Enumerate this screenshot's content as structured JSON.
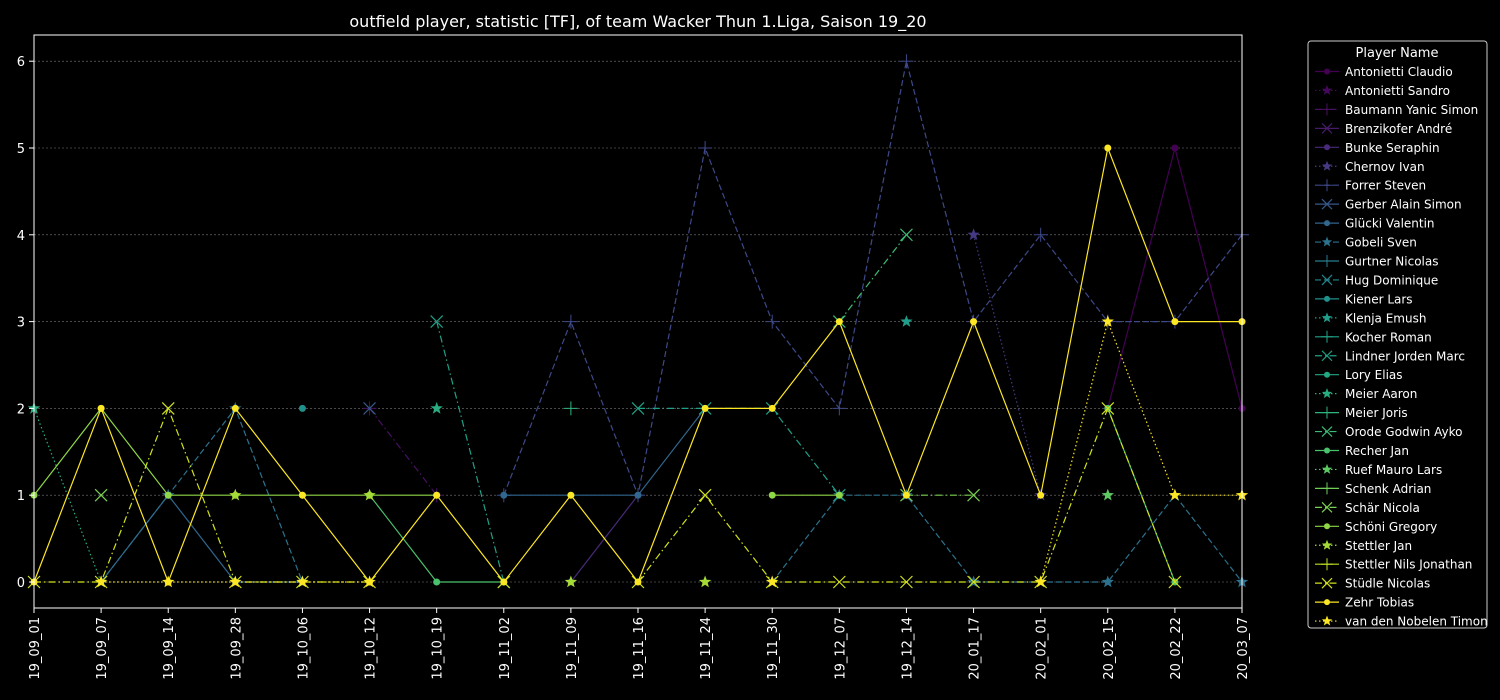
{
  "chart_data": {
    "type": "line",
    "title": "outfield player, statistic [TF], of team Wacker Thun 1.Liga, Saison 19_20",
    "xlabel": "",
    "ylabel": "",
    "x": [
      "19_09_01",
      "19_09_07",
      "19_09_14",
      "19_09_28",
      "19_10_06",
      "19_10_12",
      "19_10_19",
      "19_11_02",
      "19_11_09",
      "19_11_16",
      "19_11_24",
      "19_11_30",
      "19_12_07",
      "19_12_14",
      "20_01_17",
      "20_02_01",
      "20_02_15",
      "20_02_22",
      "20_03_07"
    ],
    "yticks": [
      0,
      1,
      2,
      3,
      4,
      5,
      6
    ],
    "ylim": [
      -0.3,
      6.3
    ],
    "grid": true,
    "legend_title": "Player Name",
    "legend_position": "outside-right",
    "series": [
      {
        "name": "Antonietti Claudio",
        "color": "#440154",
        "marker": "o",
        "dash": "solid",
        "values": [
          null,
          null,
          null,
          null,
          null,
          null,
          null,
          null,
          null,
          null,
          null,
          null,
          null,
          null,
          null,
          null,
          2,
          5,
          2
        ]
      },
      {
        "name": "Antonietti Sandro",
        "color": "#46085c",
        "marker": "*",
        "dash": "dotted",
        "values": [
          null,
          null,
          null,
          null,
          null,
          null,
          null,
          null,
          null,
          null,
          null,
          null,
          null,
          null,
          null,
          null,
          null,
          null,
          null
        ]
      },
      {
        "name": "Baumann Yanic Simon",
        "color": "#471063",
        "marker": "+",
        "dash": "dashdot",
        "values": [
          null,
          null,
          null,
          null,
          null,
          2,
          1,
          null,
          null,
          null,
          null,
          null,
          null,
          null,
          null,
          null,
          null,
          null,
          null
        ]
      },
      {
        "name": "Brenzikofer André",
        "color": "#481a6c",
        "marker": "x",
        "dash": "solid",
        "values": [
          null,
          null,
          null,
          null,
          null,
          null,
          null,
          null,
          null,
          null,
          null,
          null,
          null,
          null,
          null,
          null,
          null,
          null,
          null
        ]
      },
      {
        "name": "Bunke Seraphin",
        "color": "#472a7a",
        "marker": "o",
        "dash": "solid",
        "values": [
          null,
          null,
          null,
          null,
          null,
          null,
          null,
          null,
          0,
          1,
          null,
          null,
          null,
          null,
          null,
          null,
          null,
          null,
          null
        ]
      },
      {
        "name": "Chernov Ivan",
        "color": "#443a83",
        "marker": "*",
        "dash": "dotted",
        "values": [
          null,
          null,
          null,
          null,
          null,
          null,
          null,
          null,
          null,
          null,
          null,
          null,
          null,
          null,
          4,
          1,
          null,
          null,
          null
        ]
      },
      {
        "name": "Forrer Steven",
        "color": "#3e4989",
        "marker": "+",
        "dash": "dashed",
        "values": [
          null,
          null,
          null,
          null,
          null,
          null,
          null,
          1,
          3,
          1,
          5,
          3,
          2,
          6,
          3,
          4,
          3,
          3,
          4
        ]
      },
      {
        "name": "Gerber Alain Simon",
        "color": "#38588c",
        "marker": "x",
        "dash": "solid",
        "values": [
          null,
          null,
          null,
          null,
          null,
          2,
          null,
          null,
          null,
          null,
          null,
          null,
          null,
          null,
          null,
          null,
          null,
          null,
          null
        ]
      },
      {
        "name": "Glücki Valentin",
        "color": "#31668e",
        "marker": "o",
        "dash": "solid",
        "values": [
          null,
          0,
          1,
          0,
          0,
          null,
          null,
          1,
          1,
          1,
          2,
          null,
          null,
          null,
          null,
          null,
          null,
          null,
          null
        ]
      },
      {
        "name": "Gobeli Sven",
        "color": "#2c728e",
        "marker": "*",
        "dash": "dashed",
        "values": [
          null,
          0,
          1,
          2,
          0,
          null,
          null,
          null,
          null,
          null,
          null,
          0,
          1,
          1,
          0,
          0,
          0,
          1,
          0
        ]
      },
      {
        "name": "Gurtner Nicolas",
        "color": "#287d8e",
        "marker": "+",
        "dash": "solid",
        "values": [
          null,
          null,
          null,
          null,
          null,
          null,
          null,
          null,
          null,
          null,
          null,
          null,
          null,
          null,
          null,
          null,
          null,
          null,
          null
        ]
      },
      {
        "name": "Hug Dominique",
        "color": "#24868e",
        "marker": "x",
        "dash": "dashed",
        "values": [
          null,
          null,
          null,
          null,
          null,
          null,
          null,
          null,
          null,
          null,
          null,
          null,
          null,
          null,
          null,
          null,
          null,
          null,
          null
        ]
      },
      {
        "name": "Kiener Lars",
        "color": "#21918c",
        "marker": "o",
        "dash": "solid",
        "values": [
          null,
          null,
          null,
          null,
          2,
          null,
          null,
          null,
          null,
          null,
          null,
          null,
          null,
          null,
          null,
          null,
          null,
          null,
          null
        ]
      },
      {
        "name": "Klenja Emush",
        "color": "#1f9e89",
        "marker": "*",
        "dash": "dotted",
        "values": [
          null,
          null,
          null,
          null,
          null,
          null,
          null,
          null,
          null,
          null,
          null,
          null,
          null,
          3,
          null,
          null,
          null,
          null,
          null
        ]
      },
      {
        "name": "Kocher Roman",
        "color": "#20a386",
        "marker": "+",
        "dash": "solid",
        "values": [
          null,
          null,
          null,
          null,
          null,
          null,
          null,
          null,
          null,
          null,
          null,
          null,
          null,
          null,
          null,
          null,
          null,
          null,
          null
        ]
      },
      {
        "name": "Lindner Jorden Marc",
        "color": "#1fa187",
        "marker": "x",
        "dash": "dashdot",
        "values": [
          null,
          null,
          null,
          null,
          null,
          null,
          3,
          0,
          null,
          2,
          2,
          2,
          1,
          null,
          null,
          null,
          null,
          null,
          null
        ]
      },
      {
        "name": "Lory Elias",
        "color": "#22a884",
        "marker": "o",
        "dash": "solid",
        "values": [
          null,
          null,
          null,
          null,
          null,
          null,
          null,
          null,
          null,
          null,
          null,
          null,
          null,
          null,
          null,
          null,
          null,
          null,
          null
        ]
      },
      {
        "name": "Meier Aaron",
        "color": "#27ad81",
        "marker": "*",
        "dash": "dotted",
        "values": [
          2,
          0,
          null,
          null,
          null,
          null,
          2,
          null,
          null,
          null,
          null,
          null,
          null,
          null,
          null,
          null,
          null,
          null,
          null
        ]
      },
      {
        "name": "Meier Joris",
        "color": "#2eb37c",
        "marker": "+",
        "dash": "solid",
        "values": [
          null,
          null,
          null,
          null,
          null,
          null,
          null,
          null,
          2,
          null,
          null,
          null,
          null,
          null,
          null,
          null,
          null,
          null,
          null
        ]
      },
      {
        "name": "Orode Godwin Ayko",
        "color": "#3bbb75",
        "marker": "x",
        "dash": "dashdot",
        "values": [
          null,
          null,
          null,
          null,
          null,
          null,
          null,
          null,
          null,
          null,
          null,
          null,
          3,
          4,
          null,
          null,
          null,
          null,
          null
        ]
      },
      {
        "name": "Recher Jan",
        "color": "#4ac16d",
        "marker": "o",
        "dash": "solid",
        "values": [
          null,
          null,
          null,
          null,
          null,
          1,
          0,
          0,
          null,
          null,
          null,
          null,
          null,
          null,
          null,
          null,
          2,
          0,
          null
        ]
      },
      {
        "name": "Ruef Mauro Lars",
        "color": "#5ec962",
        "marker": "*",
        "dash": "dotted",
        "values": [
          null,
          null,
          null,
          null,
          null,
          null,
          null,
          null,
          null,
          null,
          null,
          null,
          null,
          null,
          null,
          null,
          1,
          null,
          null
        ]
      },
      {
        "name": "Schenk Adrian",
        "color": "#6ece58",
        "marker": "+",
        "dash": "solid",
        "values": [
          null,
          null,
          null,
          null,
          null,
          null,
          null,
          null,
          null,
          null,
          null,
          null,
          null,
          null,
          null,
          null,
          null,
          null,
          null
        ]
      },
      {
        "name": "Schär Nicola",
        "color": "#7ad151",
        "marker": "x",
        "dash": "dashdot",
        "values": [
          null,
          1,
          null,
          null,
          null,
          null,
          null,
          null,
          null,
          null,
          null,
          null,
          null,
          1,
          1,
          null,
          null,
          null,
          null
        ]
      },
      {
        "name": "Schöni Gregory",
        "color": "#8fd744",
        "marker": "o",
        "dash": "solid",
        "values": [
          1,
          2,
          1,
          1,
          1,
          1,
          1,
          null,
          null,
          null,
          null,
          1,
          1,
          null,
          null,
          null,
          null,
          null,
          null
        ]
      },
      {
        "name": "Stettler Jan",
        "color": "#a5db36",
        "marker": "*",
        "dash": "dotted",
        "values": [
          null,
          null,
          null,
          1,
          null,
          1,
          null,
          null,
          0,
          null,
          0,
          null,
          null,
          null,
          null,
          null,
          null,
          null,
          null
        ]
      },
      {
        "name": "Stettler Nils Jonathan",
        "color": "#bddf26",
        "marker": "+",
        "dash": "solid",
        "values": [
          null,
          null,
          null,
          null,
          null,
          null,
          null,
          null,
          null,
          null,
          null,
          null,
          null,
          null,
          null,
          null,
          null,
          null,
          null
        ]
      },
      {
        "name": "Stüdle Nicolas",
        "color": "#d2e21b",
        "marker": "x",
        "dash": "dashdot",
        "values": [
          0,
          0,
          2,
          0,
          0,
          0,
          null,
          0,
          null,
          0,
          1,
          0,
          0,
          0,
          0,
          0,
          2,
          0,
          null
        ]
      },
      {
        "name": "Zehr Tobias",
        "color": "#fde725",
        "marker": "o",
        "dash": "solid",
        "values": [
          0,
          2,
          0,
          2,
          1,
          0,
          1,
          0,
          1,
          0,
          2,
          2,
          3,
          1,
          3,
          1,
          5,
          3,
          3
        ]
      },
      {
        "name": "van den Nobelen Timon",
        "color": "#fde725",
        "marker": "*",
        "dash": "dotted",
        "values": [
          null,
          0,
          0,
          0,
          0,
          0,
          null,
          null,
          null,
          null,
          null,
          0,
          null,
          null,
          null,
          0,
          3,
          1,
          1
        ]
      }
    ]
  }
}
